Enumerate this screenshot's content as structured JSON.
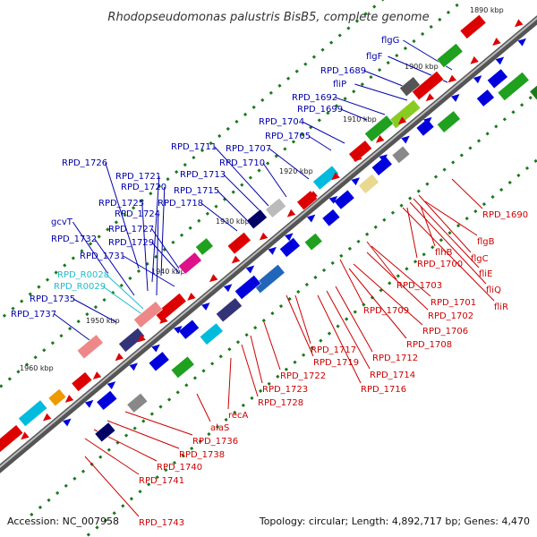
{
  "title": "Rhodopseudomonas palustris BisB5, complete genome",
  "footer": {
    "accession": "Accession: NC_007958",
    "summary": "Topology: circular; Length: 4,892,717 bp; Genes: 4,470"
  },
  "colors": {
    "forward_label": "#0000aa",
    "reverse_label": "#cc0000",
    "rna_label": "#22bbcc",
    "backbone": "#666666",
    "tick": "#1a7a1a"
  },
  "kbp_markers": [
    "1890 kbp",
    "1900 kbp",
    "1910 kbp",
    "1920 kbp",
    "1930 kbp",
    "1940 kbp",
    "1950 kbp",
    "1960 kbp"
  ],
  "upper_labels": [
    "flgG",
    "flgF",
    "RPD_1689",
    "fliP",
    "RPD_1692",
    "RPD_1699",
    "RPD_1704",
    "RPD_1705",
    "RPD_1711",
    "RPD_1707",
    "RPD_1726",
    "RPD_1710",
    "RPD_1721",
    "RPD_1713",
    "RPD_1720",
    "RPD_1715",
    "RPD_1725",
    "RPD_1718",
    "RPD_1724",
    "gcvT",
    "RPD_1727",
    "RPD_1732",
    "RPD_1729",
    "RPD_1731",
    "RPD_R0028",
    "RPD_R0029",
    "RPD_1735",
    "RPD_1737"
  ],
  "lower_labels": [
    "RPD_1690",
    "flgB",
    "flhB",
    "flgC",
    "RPD_1700",
    "fliE",
    "fliQ",
    "fliR",
    "RPD_1703",
    "RPD_1701",
    "RPD_1702",
    "RPD_1709",
    "RPD_1706",
    "RPD_1708",
    "RPD_1717",
    "RPD_1712",
    "RPD_1719",
    "RPD_1714",
    "RPD_1722",
    "RPD_1716",
    "RPD_1723",
    "RPD_1728",
    "recA",
    "alaS",
    "RPD_1736",
    "RPD_1738",
    "RPD_1740",
    "RPD_1741",
    "RPD_1743"
  ]
}
